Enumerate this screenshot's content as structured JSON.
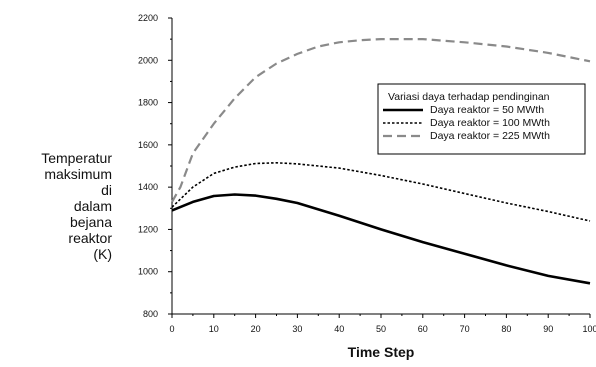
{
  "chart_data": {
    "type": "line",
    "xlabel": "Time Step",
    "ylabel_lines": [
      "Temperatur",
      "maksimum",
      "di",
      "dalam",
      "bejana",
      "reaktor",
      "(K)"
    ],
    "xlim": [
      0,
      100
    ],
    "ylim": [
      800,
      2200
    ],
    "xticks": [
      "0",
      "10",
      "20",
      "30",
      "40",
      "50",
      "60",
      "70",
      "80",
      "90",
      "100"
    ],
    "yticks": [
      "800",
      "1000",
      "1200",
      "1400",
      "1600",
      "1800",
      "2000",
      "2200"
    ],
    "grid": false,
    "legend": {
      "title": "Variasi daya terhadap pendinginan",
      "placement": "right"
    },
    "series": [
      {
        "name": "Daya reaktor = 50 MWth",
        "style": "solid",
        "color": "#000000",
        "x": [
          0,
          5,
          10,
          15,
          20,
          25,
          30,
          40,
          50,
          60,
          70,
          80,
          90,
          100
        ],
        "y": [
          1290,
          1330,
          1358,
          1365,
          1360,
          1345,
          1325,
          1265,
          1200,
          1140,
          1085,
          1030,
          980,
          945
        ]
      },
      {
        "name": "Daya reaktor = 100 MWth",
        "style": "dotted",
        "color": "#000000",
        "x": [
          0,
          5,
          10,
          15,
          20,
          25,
          30,
          40,
          50,
          60,
          70,
          80,
          90,
          100
        ],
        "y": [
          1305,
          1400,
          1465,
          1495,
          1512,
          1515,
          1510,
          1490,
          1455,
          1415,
          1370,
          1325,
          1285,
          1240
        ]
      },
      {
        "name": "Daya reaktor = 225 MWth",
        "style": "dashed",
        "color": "#8a8a8a",
        "x": [
          0,
          2,
          5,
          10,
          15,
          20,
          25,
          30,
          35,
          40,
          45,
          50,
          55,
          60,
          70,
          80,
          90,
          100
        ],
        "y": [
          1330,
          1400,
          1560,
          1700,
          1820,
          1920,
          1985,
          2030,
          2065,
          2085,
          2095,
          2100,
          2100,
          2100,
          2085,
          2065,
          2035,
          1995
        ]
      }
    ]
  }
}
